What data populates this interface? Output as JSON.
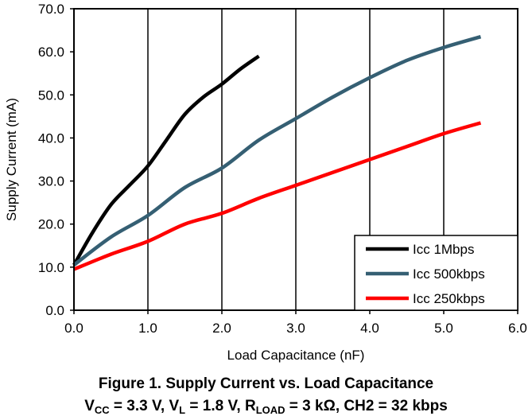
{
  "chart_data": {
    "type": "line",
    "title": "Figure 1. Supply Current vs. Load Capacitance",
    "subtitle_parts": [
      {
        "t": "V"
      },
      {
        "t": "CC",
        "sub": true
      },
      {
        "t": " = 3.3 V, V"
      },
      {
        "t": "L",
        "sub": true
      },
      {
        "t": " = 1.8 V, R"
      },
      {
        "t": "LOAD",
        "sub": true
      },
      {
        "t": " = 3 kΩ, CH2 = 32 kbps"
      }
    ],
    "xlabel": "Load Capacitance (nF)",
    "ylabel": "Supply Current (mA)",
    "xlim": [
      0,
      6
    ],
    "ylim": [
      0,
      70
    ],
    "x_ticks": [
      "0.0",
      "1.0",
      "2.0",
      "3.0",
      "4.0",
      "5.0",
      "6.0"
    ],
    "y_ticks": [
      "0.0",
      "10.0",
      "20.0",
      "30.0",
      "40.0",
      "50.0",
      "60.0",
      "70.0"
    ],
    "grid": "vertical",
    "legend_position": "bottom-right",
    "series": [
      {
        "name": "Icc 1Mbps",
        "color": "#000000",
        "x": [
          0,
          0.25,
          0.5,
          0.75,
          1.0,
          1.25,
          1.5,
          1.75,
          2.0,
          2.25,
          2.5
        ],
        "y": [
          10.5,
          18.0,
          24.5,
          29.0,
          33.5,
          39.5,
          45.5,
          49.5,
          52.5,
          56.0,
          59.0
        ]
      },
      {
        "name": "Icc 500kbps",
        "color": "#355f73",
        "x": [
          0,
          0.5,
          1.0,
          1.5,
          2.0,
          2.5,
          3.0,
          3.5,
          4.0,
          4.5,
          5.0,
          5.5
        ],
        "y": [
          10.5,
          17.0,
          22.0,
          28.5,
          33.0,
          39.5,
          44.5,
          49.5,
          54.0,
          58.0,
          61.0,
          63.5
        ]
      },
      {
        "name": "Icc 250kbps",
        "color": "#ff0000",
        "x": [
          0,
          0.5,
          1.0,
          1.5,
          2.0,
          2.5,
          3.0,
          3.5,
          4.0,
          4.5,
          5.0,
          5.5
        ],
        "y": [
          9.5,
          13.0,
          16.0,
          20.0,
          22.5,
          26.0,
          29.0,
          32.0,
          35.0,
          38.0,
          41.0,
          43.5
        ]
      }
    ]
  }
}
